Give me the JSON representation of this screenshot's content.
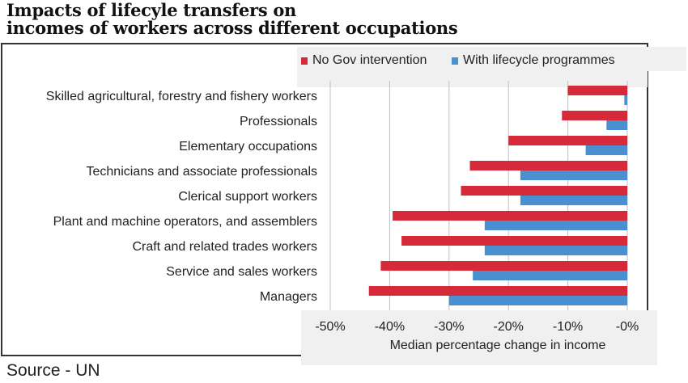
{
  "title_line1": "Impacts of lifecyle transfers on",
  "title_line2": "incomes of workers across different occupations",
  "source": "Source - UN",
  "colors": {
    "no_gov": "#d62a3a",
    "lifecycle": "#4a8fd0",
    "grid": "#bfbfbf"
  },
  "chart_data": {
    "type": "bar",
    "orientation": "horizontal",
    "categories": [
      "Skilled agricultural, forestry and fishery workers",
      "Professionals",
      "Elementary occupations",
      "Technicians and associate professionals",
      "Clerical support workers",
      "Plant and machine operators, and assemblers",
      "Craft and related trades workers",
      "Service and sales workers",
      "Managers"
    ],
    "series": [
      {
        "name": "No Gov intervention",
        "values": [
          -10,
          -11,
          -20,
          -26.5,
          -28,
          -39.5,
          -38,
          -41.5,
          -43.5
        ]
      },
      {
        "name": "With lifecycle programmes",
        "values": [
          -0.5,
          -3.5,
          -7,
          -18,
          -18,
          -24,
          -24,
          -26,
          -30
        ]
      }
    ],
    "xlabel": "Median percentage change in income",
    "xticks": [
      "-50%",
      "-40%",
      "-30%",
      "-20%",
      "-10%",
      "-0%"
    ],
    "xlim": [
      -50,
      0
    ],
    "legend": "top-right",
    "grid": true
  }
}
